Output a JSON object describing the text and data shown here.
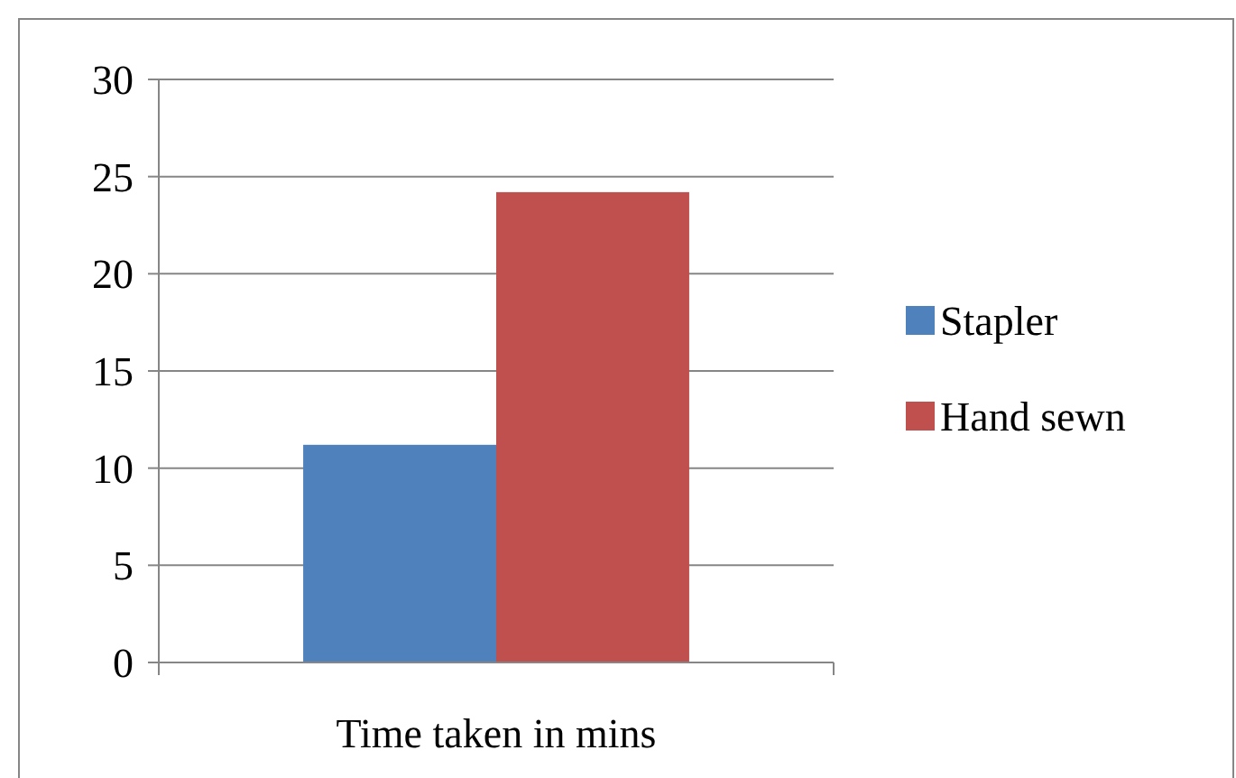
{
  "chart_data": {
    "type": "bar",
    "categories": [
      "Time taken in mins"
    ],
    "series": [
      {
        "name": "Stapler",
        "color": "#4f81bd",
        "values": [
          11.2
        ]
      },
      {
        "name": "Hand sewn",
        "color": "#c0504d",
        "values": [
          24.2
        ]
      }
    ],
    "ylim": [
      0,
      30
    ],
    "yticks": [
      0,
      5,
      10,
      15,
      20,
      25,
      30
    ],
    "grid": "y",
    "legend": "right"
  }
}
